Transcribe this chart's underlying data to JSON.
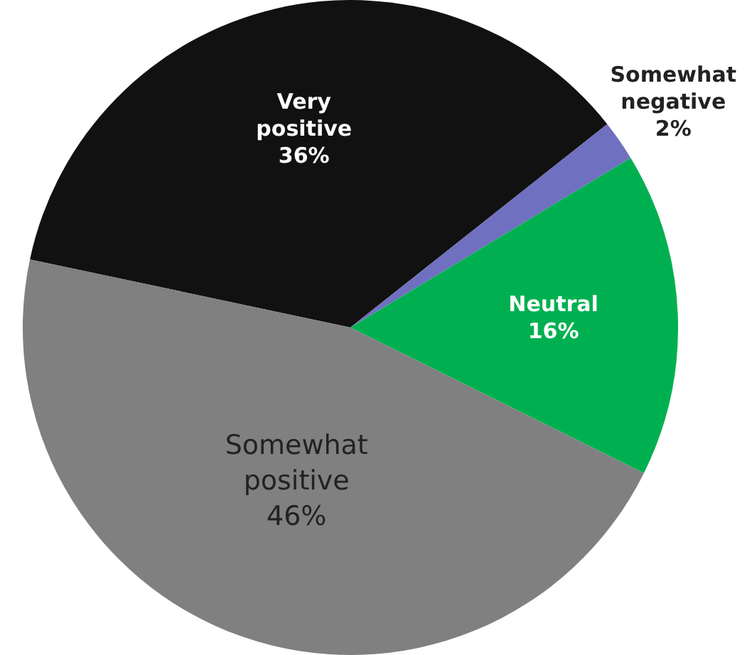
{
  "chart_data": {
    "type": "pie",
    "categories": [
      "Very positive",
      "Somewhat negative",
      "Neutral",
      "Somewhat positive"
    ],
    "values": [
      36,
      2,
      16,
      46
    ],
    "colors": [
      "#111111",
      "#7070c0",
      "#00b050",
      "#808080"
    ],
    "value_labels": [
      "36%",
      "2%",
      "16%",
      "46%"
    ],
    "legend": false
  }
}
